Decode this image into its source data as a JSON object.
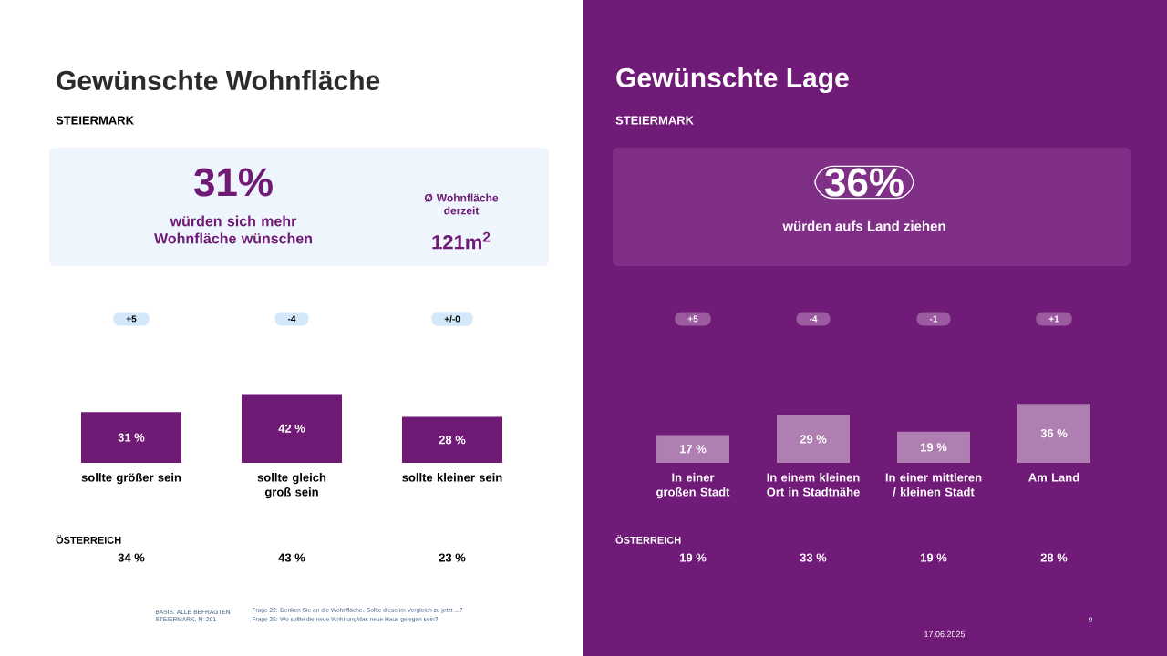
{
  "chart_data": [
    {
      "type": "bar",
      "title": "Gewünschte Wohnfläche",
      "subtitle": "STEIERMARK",
      "categories": [
        "sollte größer sein",
        "sollte gleich groß sein",
        "sollte kleiner sein"
      ],
      "values": [
        31,
        42,
        28
      ],
      "color": "#6f1a74",
      "value_labels": [
        "31 %",
        "42 %",
        "28 %"
      ],
      "annotations": [
        "+5",
        "-4",
        "+/-0",
        "ÖSTERREICH",
        "34 %",
        "43 %",
        "23 %",
        "31%",
        "würden sich mehr Wohnfläche wünschen",
        "Ø Wohnfläche derzeit",
        "121m$^{2}$",
        "BASIS: ALLE BEFRAGTEN STEIERMARK, N=201",
        "Frage 22: Denken Sie an die Wohnfläche. Sollte diese im Vergleich zu jetzt ...?",
        "Frage 25: Wo sollte die neue Wohnung/das neue Haus gelegen sein?"
      ]
    },
    {
      "type": "bar",
      "title": "Gewünschte Lage",
      "subtitle": "STEIERMARK",
      "categories": [
        "In einer großen Stadt",
        "In einem kleinen Ort in Stadtnähe",
        "In einer mittleren / kleinen Stadt",
        "Am Land"
      ],
      "values": [
        17,
        29,
        19,
        36
      ],
      "color": "#b07fb2",
      "value_labels": [
        "17 %",
        "29 %",
        "19 %",
        "36 %"
      ],
      "annotations": [
        "+5",
        "-4",
        "-1",
        "+1",
        "ÖSTERREICH",
        "19 %",
        "33 %",
        "19 %",
        "28 %",
        "36%",
        "würden aufs Land ziehen",
        "17.06.2025",
        "9"
      ]
    }
  ]
}
